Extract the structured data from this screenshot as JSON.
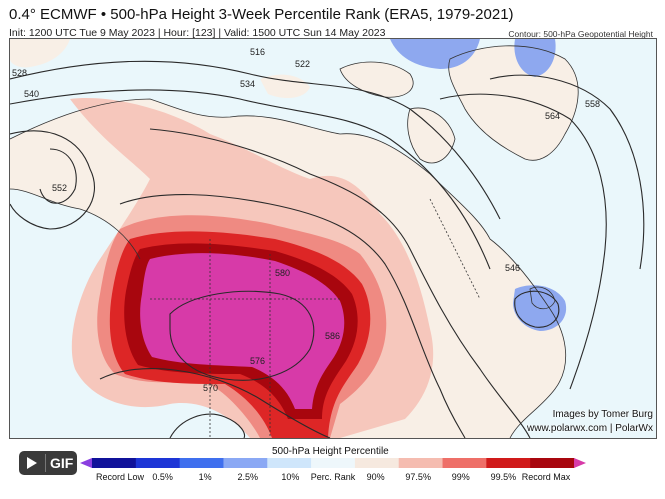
{
  "header": {
    "title": "0.4° ECMWF • 500-hPa Height 3-Week Percentile Rank (ERA5, 1979-2021)",
    "subtitle": "Init: 1200 UTC Tue 9 May 2023 | Hour: [123] | Valid: 1500 UTC Sun 14 May 2023",
    "contour_note": "Contour: 500-hPa Geopotential Height"
  },
  "credits": {
    "line1": "Images by Tomer Burg",
    "line2": "www.polarwx.com | PolarWx"
  },
  "gif_button": {
    "label": "GIF",
    "play_icon": "play-icon"
  },
  "colorbar": {
    "title": "500-hPa Height Percentile",
    "labels": [
      "Record Low",
      "0.5%",
      "1%",
      "2.5%",
      "10%",
      "Perc. Rank",
      "90%",
      "97.5%",
      "99%",
      "99.5%",
      "Record Max"
    ],
    "colors": [
      "#8a3fe0",
      "#10129a",
      "#1d35d6",
      "#3f6fee",
      "#8aa8f4",
      "#cfe6fb",
      "#eef7fb",
      "#f6e9df",
      "#f5bcb0",
      "#ee6f68",
      "#d01a1a",
      "#a8060e",
      "#d73aa8"
    ]
  },
  "map": {
    "contour_labels": [
      "516",
      "522",
      "528",
      "534",
      "540",
      "546",
      "552",
      "558",
      "564",
      "570",
      "576",
      "580",
      "586"
    ],
    "colors": {
      "ocean": "#eaf7fb",
      "land": "#f8efe6",
      "coast": "#333333",
      "contour": "#2a2a2a",
      "pct_90": "#f6c7bc",
      "pct_975": "#ef8a82",
      "pct_99": "#dd2626",
      "pct_995": "#a8060e",
      "record_max": "#d73aa8",
      "low": "#8ea8ef"
    }
  }
}
